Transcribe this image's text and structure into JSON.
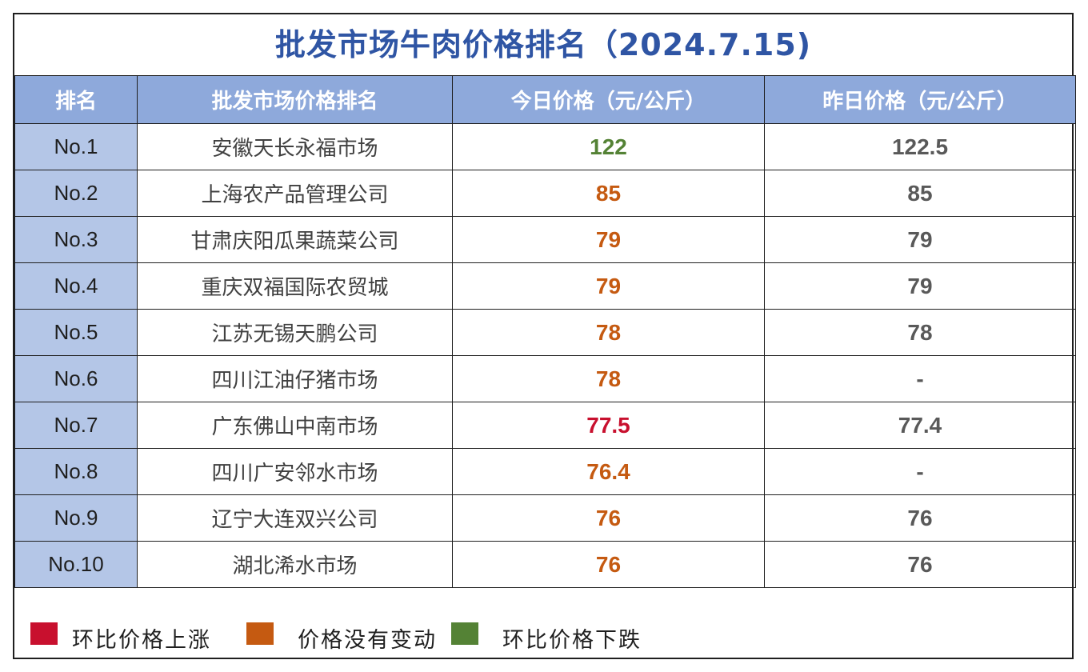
{
  "title": "批发市场牛肉价格排名（2024.7.15)",
  "headers": [
    "排名",
    "批发市场价格排名",
    "今日价格（元/公斤）",
    "昨日价格（元/公斤）"
  ],
  "colors": {
    "up": "#c8102e",
    "flat": "#c55a11",
    "down": "#548235",
    "header_bg": "#8ea9db",
    "rank_bg": "#b4c6e7",
    "title": "#2f55a4"
  },
  "rows": [
    {
      "rank": "No.1",
      "market": "安徽天长永福市场",
      "today": "122",
      "yesterday": "122.5",
      "trend": "down"
    },
    {
      "rank": "No.2",
      "market": "上海农产品管理公司",
      "today": "85",
      "yesterday": "85",
      "trend": "flat"
    },
    {
      "rank": "No.3",
      "market": "甘肃庆阳瓜果蔬菜公司",
      "today": "79",
      "yesterday": "79",
      "trend": "flat"
    },
    {
      "rank": "No.4",
      "market": "重庆双福国际农贸城",
      "today": "79",
      "yesterday": "79",
      "trend": "flat"
    },
    {
      "rank": "No.5",
      "market": "江苏无锡天鹏公司",
      "today": "78",
      "yesterday": "78",
      "trend": "flat"
    },
    {
      "rank": "No.6",
      "market": "四川江油仔猪市场",
      "today": "78",
      "yesterday": "-",
      "trend": "flat"
    },
    {
      "rank": "No.7",
      "market": "广东佛山中南市场",
      "today": "77.5",
      "yesterday": "77.4",
      "trend": "up"
    },
    {
      "rank": "No.8",
      "market": "四川广安邻水市场",
      "today": "76.4",
      "yesterday": "-",
      "trend": "flat"
    },
    {
      "rank": "No.9",
      "market": "辽宁大连双兴公司",
      "today": "76",
      "yesterday": "76",
      "trend": "flat"
    },
    {
      "rank": "No.10",
      "market": "湖北浠水市场",
      "today": "76",
      "yesterday": "76",
      "trend": "flat"
    }
  ],
  "legend": [
    {
      "label": "环比价格上涨",
      "color": "#c8102e"
    },
    {
      "label": "价格没有变动",
      "color": "#c55a11"
    },
    {
      "label": "环比价格下跌",
      "color": "#548235"
    }
  ]
}
